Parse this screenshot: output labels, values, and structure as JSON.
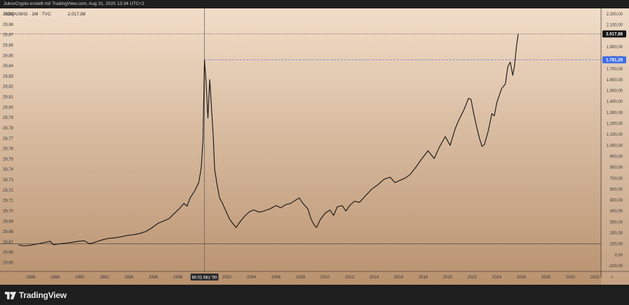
{
  "header": {
    "caption": "JukovCrypto erstellt mit TradingView.com, Aug 31, 2025 13:34 UTC+2"
  },
  "legend": {
    "symbol_line": "NDQ/USH2 · 1M · TVC",
    "last_value": "2.017,88"
  },
  "footer": {
    "brand": "TradingView"
  },
  "settings_glyph": "⌕",
  "colors": {
    "bg_top": "#f1ddc8",
    "bg_bottom": "#b9926f",
    "line": "#131313",
    "crosshair": "#5a5a5a",
    "hline_blue": "#5b67d8",
    "badge_dark": "#131313",
    "badge_blue": "#3d6ce6"
  },
  "chart_data": {
    "type": "line",
    "title": "",
    "xlabel": "",
    "ylabel": "",
    "x_ticks": [
      "1986",
      "1988",
      "1990",
      "1992",
      "1994",
      "1996",
      "1998",
      "2000",
      "2002",
      "2004",
      "2006",
      "2008",
      "2010",
      "2012",
      "2014",
      "2016",
      "2018",
      "2020",
      "2022",
      "2024",
      "2026",
      "2028",
      "2030",
      "2032"
    ],
    "left_ticks": [
      "29,89",
      "29,88",
      "29,87",
      "29,86",
      "29,85",
      "29,84",
      "29,83",
      "29,82",
      "29,81",
      "29,80",
      "29,79",
      "29,78",
      "29,77",
      "29,76",
      "29,75",
      "29,74",
      "29,73",
      "29,72",
      "29,71",
      "29,70",
      "29,69",
      "29,68",
      "29,67",
      "29,66",
      "29,65"
    ],
    "left_range": [
      29.647,
      29.89
    ],
    "right_ticks": [
      "2.200,00",
      "2.100,00",
      "2.000,00",
      "1.900,00",
      "1.800,00",
      "1.700,00",
      "1.600,00",
      "1.500,00",
      "1.400,00",
      "1.300,00",
      "1.200,00",
      "1.100,00",
      "1.000,00",
      "900,00",
      "800,00",
      "700,00",
      "600,00",
      "500,00",
      "400,00",
      "300,00",
      "200,00",
      "100,00",
      "0,00",
      "-100,00"
    ],
    "right_range": [
      -100,
      2200
    ],
    "x_range": [
      1983.5,
      2032.5
    ],
    "crosshair_x_label": "Mi 01 Mrz '00",
    "crosshair_x": 2000.17,
    "crosshair_y": 1781.28,
    "last_price_label": "2.017,88",
    "last_price": 2017.88,
    "marker_label": "1.781,28",
    "marker_price": 1781.28,
    "baseline": 100,
    "series": [
      {
        "points": [
          [
            1985.0,
            90
          ],
          [
            1985.5,
            82
          ],
          [
            1986.0,
            88
          ],
          [
            1986.5,
            98
          ],
          [
            1987.0,
            110
          ],
          [
            1987.6,
            125
          ],
          [
            1987.85,
            92
          ],
          [
            1988.3,
            100
          ],
          [
            1988.8,
            106
          ],
          [
            1989.4,
            115
          ],
          [
            1989.9,
            124
          ],
          [
            1990.4,
            128
          ],
          [
            1990.8,
            100
          ],
          [
            1991.3,
            118
          ],
          [
            1991.8,
            136
          ],
          [
            1992.3,
            150
          ],
          [
            1992.9,
            156
          ],
          [
            1993.4,
            166
          ],
          [
            1993.9,
            178
          ],
          [
            1994.4,
            184
          ],
          [
            1994.9,
            196
          ],
          [
            1995.4,
            214
          ],
          [
            1995.9,
            248
          ],
          [
            1996.4,
            290
          ],
          [
            1996.9,
            312
          ],
          [
            1997.3,
            332
          ],
          [
            1997.7,
            378
          ],
          [
            1998.1,
            420
          ],
          [
            1998.5,
            470
          ],
          [
            1998.75,
            445
          ],
          [
            1999.0,
            520
          ],
          [
            1999.4,
            590
          ],
          [
            1999.7,
            660
          ],
          [
            1999.9,
            790
          ],
          [
            2000.05,
            1050
          ],
          [
            2000.17,
            1781
          ],
          [
            2000.3,
            1580
          ],
          [
            2000.45,
            1250
          ],
          [
            2000.6,
            1600
          ],
          [
            2000.75,
            1330
          ],
          [
            2000.9,
            1050
          ],
          [
            2001.0,
            780
          ],
          [
            2001.2,
            640
          ],
          [
            2001.4,
            520
          ],
          [
            2001.6,
            480
          ],
          [
            2001.8,
            430
          ],
          [
            2002.0,
            380
          ],
          [
            2002.2,
            330
          ],
          [
            2002.45,
            290
          ],
          [
            2002.75,
            250
          ],
          [
            2002.95,
            285
          ],
          [
            2003.2,
            320
          ],
          [
            2003.5,
            360
          ],
          [
            2003.85,
            395
          ],
          [
            2004.2,
            410
          ],
          [
            2004.6,
            390
          ],
          [
            2005.0,
            400
          ],
          [
            2005.5,
            420
          ],
          [
            2006.0,
            450
          ],
          [
            2006.4,
            430
          ],
          [
            2006.8,
            460
          ],
          [
            2007.2,
            470
          ],
          [
            2007.6,
            500
          ],
          [
            2007.9,
            520
          ],
          [
            2008.2,
            470
          ],
          [
            2008.6,
            420
          ],
          [
            2008.85,
            330
          ],
          [
            2009.1,
            275
          ],
          [
            2009.3,
            250
          ],
          [
            2009.6,
            320
          ],
          [
            2010.0,
            380
          ],
          [
            2010.4,
            410
          ],
          [
            2010.7,
            360
          ],
          [
            2011.0,
            440
          ],
          [
            2011.4,
            450
          ],
          [
            2011.7,
            400
          ],
          [
            2012.0,
            450
          ],
          [
            2012.4,
            490
          ],
          [
            2012.8,
            480
          ],
          [
            2013.3,
            540
          ],
          [
            2013.8,
            600
          ],
          [
            2014.3,
            640
          ],
          [
            2014.8,
            690
          ],
          [
            2015.3,
            710
          ],
          [
            2015.7,
            660
          ],
          [
            2016.1,
            680
          ],
          [
            2016.5,
            700
          ],
          [
            2016.9,
            730
          ],
          [
            2017.4,
            800
          ],
          [
            2017.9,
            880
          ],
          [
            2018.4,
            950
          ],
          [
            2018.9,
            880
          ],
          [
            2019.3,
            980
          ],
          [
            2019.8,
            1080
          ],
          [
            2020.2,
            1000
          ],
          [
            2020.6,
            1150
          ],
          [
            2020.9,
            1230
          ],
          [
            2021.3,
            1320
          ],
          [
            2021.7,
            1430
          ],
          [
            2021.9,
            1420
          ],
          [
            2022.1,
            1300
          ],
          [
            2022.4,
            1150
          ],
          [
            2022.6,
            1060
          ],
          [
            2022.8,
            990
          ],
          [
            2023.0,
            1010
          ],
          [
            2023.3,
            1130
          ],
          [
            2023.6,
            1290
          ],
          [
            2023.8,
            1270
          ],
          [
            2024.0,
            1390
          ],
          [
            2024.4,
            1520
          ],
          [
            2024.7,
            1560
          ],
          [
            2024.9,
            1720
          ],
          [
            2025.1,
            1760
          ],
          [
            2025.3,
            1640
          ],
          [
            2025.45,
            1730
          ],
          [
            2025.6,
            1900
          ],
          [
            2025.75,
            2017.88
          ]
        ]
      }
    ]
  }
}
